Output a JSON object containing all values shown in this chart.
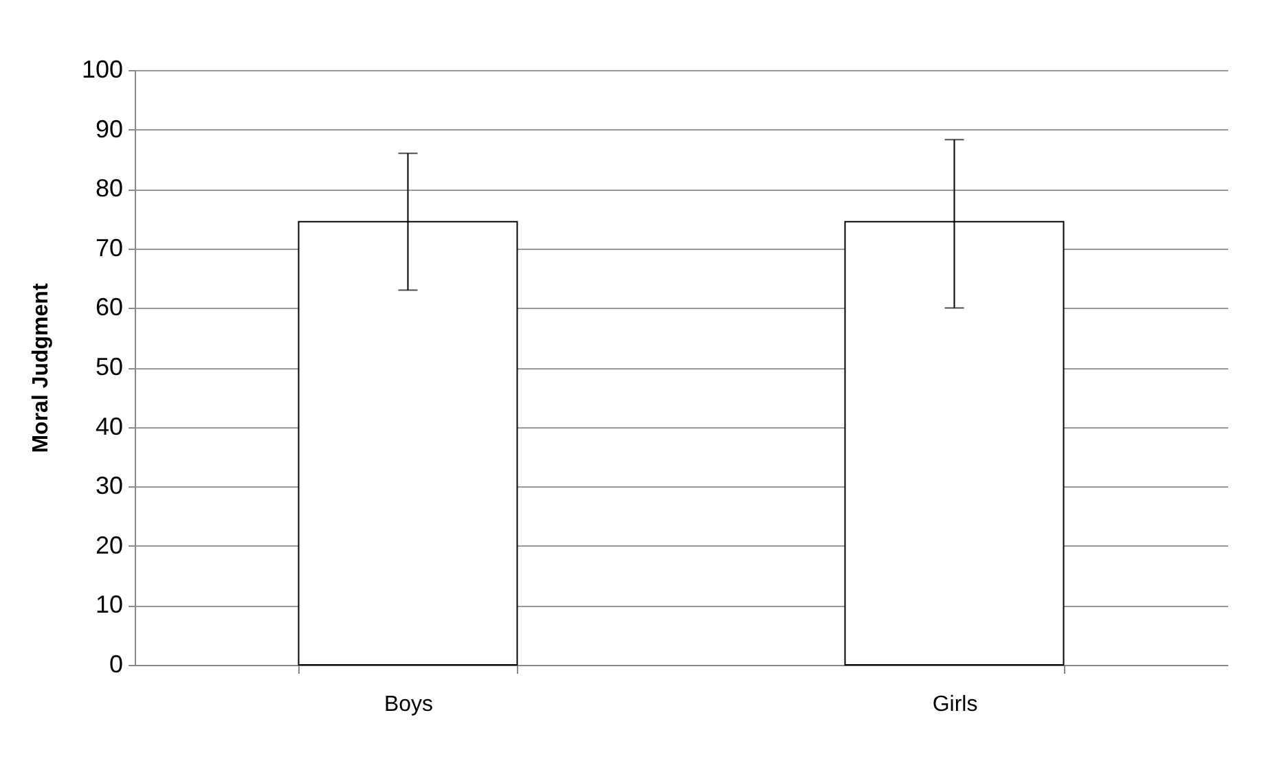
{
  "chart_data": {
    "type": "bar",
    "ylabel": "Moral Judgment",
    "categories": [
      "Boys",
      "Girls"
    ],
    "values": [
      74.5,
      74.5
    ],
    "color": "#ffffff",
    "errors": [
      [
        63,
        86
      ],
      [
        60,
        88.3
      ]
    ],
    "ylim": [
      0,
      100
    ],
    "yticks": [
      0,
      10,
      20,
      30,
      40,
      50,
      60,
      70,
      80,
      90,
      100
    ],
    "grid": "y"
  }
}
